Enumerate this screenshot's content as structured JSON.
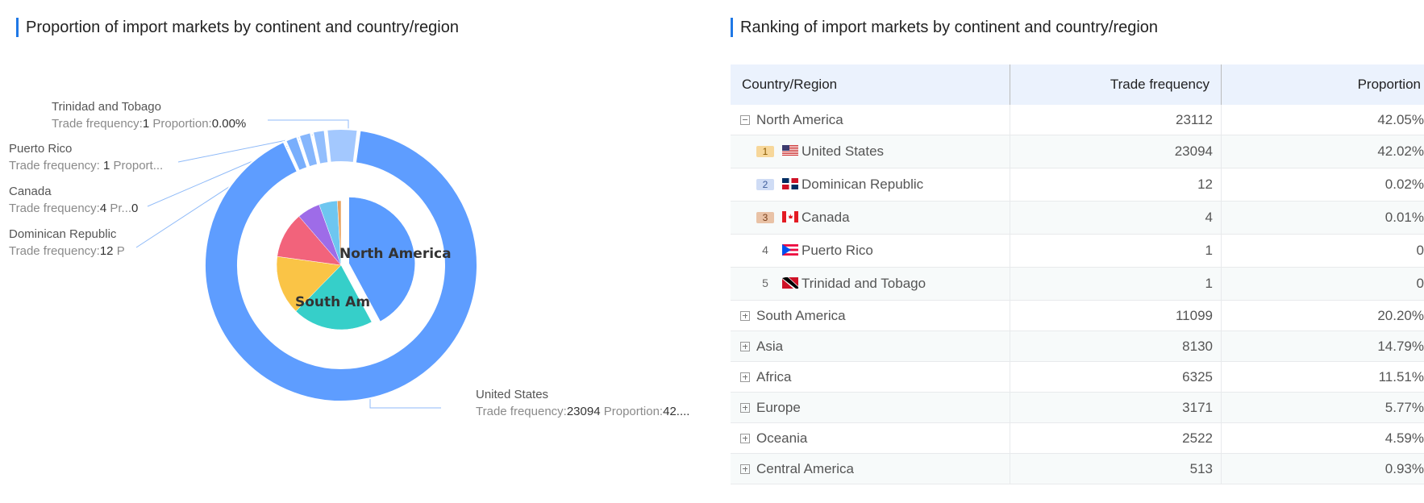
{
  "left_title": "Proportion of import markets by continent and country/region",
  "right_title": "Ranking of import markets by continent and country/region",
  "chart_data": {
    "type": "pie",
    "inner": {
      "categories": [
        "North America",
        "South America",
        "Asia",
        "Africa",
        "Europe",
        "Oceania",
        "Central America"
      ],
      "values": [
        23112,
        11099,
        8130,
        6325,
        3171,
        2522,
        513
      ],
      "colors": [
        "#5b9cff",
        "#36cfc9",
        "#fac446",
        "#f2637b",
        "#9e6ce8",
        "#6ec6f0",
        "#e8a25e"
      ],
      "visible_labels": [
        "North America",
        "South Americ"
      ],
      "exploded": "North America"
    },
    "outer": {
      "categories": [
        "United States",
        "Dominican Republic",
        "Canada",
        "Puerto Rico",
        "Trinidad and Tobago"
      ],
      "values": [
        23094,
        12,
        4,
        1,
        1
      ],
      "colors": [
        "#5e9dff",
        "#78aefc",
        "#86b6fc",
        "#92befd",
        "#a3c8fe"
      ],
      "labels": [
        {
          "name": "Trinidad and Tobago",
          "parts": [
            "Trade frequency:",
            "1",
            " Proportion:",
            "0.00%"
          ]
        },
        {
          "name": "Puerto Rico",
          "parts": [
            "Trade frequency: ",
            "1",
            " Proport..."
          ]
        },
        {
          "name": "Canada",
          "parts": [
            "Trade frequency:",
            "4",
            " Pr...",
            "0"
          ]
        },
        {
          "name": "Dominican Republic",
          "parts": [
            "Trade frequency:",
            "12",
            " P"
          ]
        },
        {
          "name": "United States",
          "parts": [
            "Trade frequency:",
            "23094",
            " Proportion:",
            "42...."
          ]
        }
      ]
    }
  },
  "table": {
    "headers": [
      "Country/Region",
      "Trade frequency",
      "Proportion"
    ],
    "rows": [
      {
        "type": "group",
        "expanded": true,
        "name": "North America",
        "freq": "23112",
        "prop": "42.05%"
      },
      {
        "type": "sub",
        "rank": "1",
        "flag": "us",
        "name": "United States",
        "freq": "23094",
        "prop": "42.02%"
      },
      {
        "type": "sub",
        "rank": "2",
        "flag": "do",
        "name": "Dominican Republic",
        "freq": "12",
        "prop": "0.02%"
      },
      {
        "type": "sub",
        "rank": "3",
        "flag": "ca",
        "name": "Canada",
        "freq": "4",
        "prop": "0.01%"
      },
      {
        "type": "sub",
        "rank": "4",
        "flag": "pr",
        "name": "Puerto Rico",
        "freq": "1",
        "prop": "0"
      },
      {
        "type": "sub",
        "rank": "5",
        "flag": "tt",
        "name": "Trinidad and Tobago",
        "freq": "1",
        "prop": "0"
      },
      {
        "type": "group",
        "expanded": false,
        "name": "South America",
        "freq": "11099",
        "prop": "20.20%"
      },
      {
        "type": "group",
        "expanded": false,
        "name": "Asia",
        "freq": "8130",
        "prop": "14.79%"
      },
      {
        "type": "group",
        "expanded": false,
        "name": "Africa",
        "freq": "6325",
        "prop": "11.51%"
      },
      {
        "type": "group",
        "expanded": false,
        "name": "Europe",
        "freq": "3171",
        "prop": "5.77%"
      },
      {
        "type": "group",
        "expanded": false,
        "name": "Oceania",
        "freq": "2522",
        "prop": "4.59%"
      },
      {
        "type": "group",
        "expanded": false,
        "name": "Central America",
        "freq": "513",
        "prop": "0.93%"
      }
    ]
  }
}
